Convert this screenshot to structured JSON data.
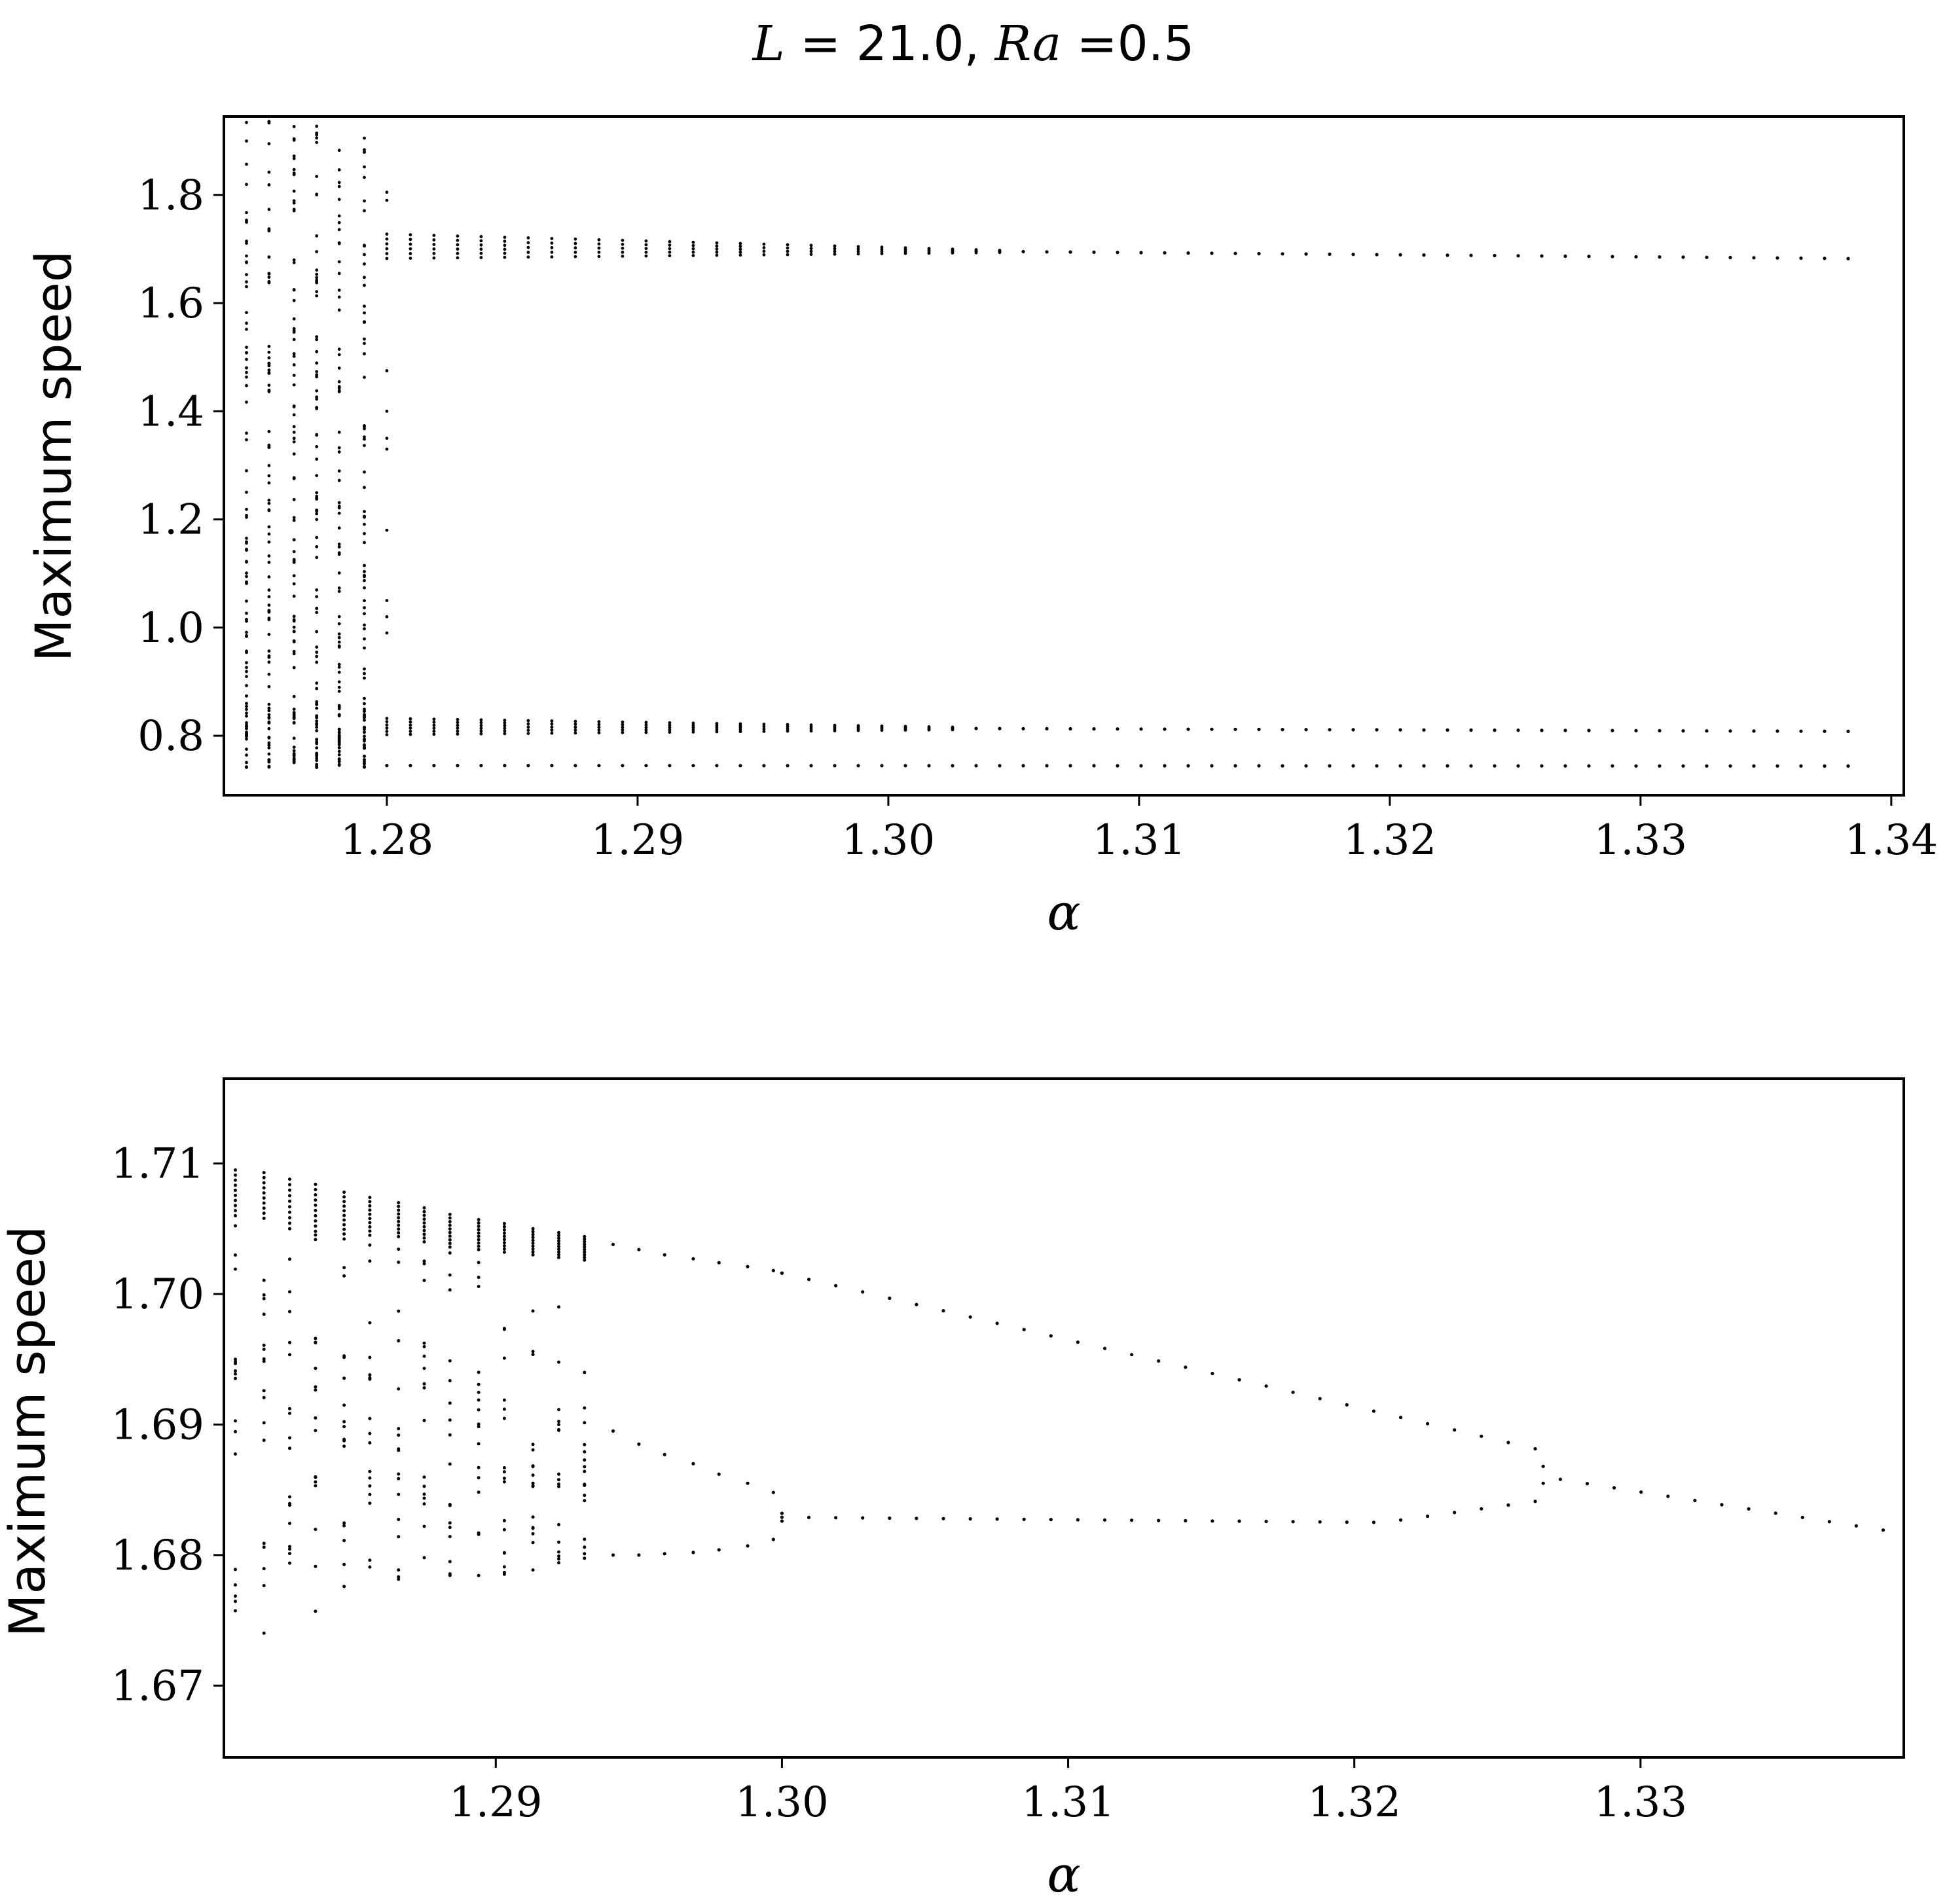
{
  "figure": {
    "title_math_L": "L",
    "title_eq1": " = 21.0, ",
    "title_math_Ra": "Ra",
    "title_eq2": " =0.5"
  },
  "chart_data": [
    {
      "type": "scatter",
      "xlabel": "α",
      "ylabel": "Maximum speed",
      "xlim": [
        1.2735,
        1.3405
      ],
      "ylim": [
        0.69,
        1.945
      ],
      "xticks": [
        1.28,
        1.29,
        1.3,
        1.31,
        1.32,
        1.33,
        1.34
      ],
      "xtick_labels": [
        "1.28",
        "1.29",
        "1.30",
        "1.31",
        "1.32",
        "1.33",
        "1.34"
      ],
      "yticks": [
        0.8,
        1.0,
        1.2,
        1.4,
        1.6,
        1.8
      ],
      "ytick_labels": [
        "0.8",
        "1.0",
        "1.2",
        "1.4",
        "1.6",
        "1.8"
      ],
      "grid": false,
      "marker_color": "#000000",
      "chaotic_region": {
        "alpha": [
          1.2744,
          1.2753,
          1.2763,
          1.2772,
          1.2781,
          1.2791
        ],
        "y_min": 0.74,
        "y_max": 1.94
      },
      "periodic_branches": [
        {
          "alpha_start": 1.28,
          "alpha_end": 1.3391,
          "step": 0.00094,
          "y_start": 1.705,
          "y_end": 1.682,
          "spread_start": 0.045,
          "spread_end": 0.0
        },
        {
          "alpha_start": 1.28,
          "alpha_end": 1.3391,
          "step": 0.00094,
          "y_start": 0.817,
          "y_end": 0.808,
          "spread_start": 0.03,
          "spread_end": 0.0
        },
        {
          "alpha_start": 1.28,
          "alpha_end": 1.3391,
          "step": 0.00094,
          "y_start": 0.745,
          "y_end": 0.744,
          "spread_start": 0.0,
          "spread_end": 0.0
        }
      ]
    },
    {
      "type": "scatter",
      "xlabel": "α",
      "ylabel": "Maximum speed",
      "xlim": [
        1.2805,
        1.3392
      ],
      "ylim": [
        1.6645,
        1.7165
      ],
      "xticks": [
        1.29,
        1.3,
        1.31,
        1.32,
        1.33
      ],
      "xtick_labels": [
        "1.29",
        "1.30",
        "1.31",
        "1.32",
        "1.33"
      ],
      "yticks": [
        1.67,
        1.68,
        1.69,
        1.7,
        1.71
      ],
      "ytick_labels": [
        "1.67",
        "1.68",
        "1.69",
        "1.70",
        "1.71"
      ],
      "grid": false,
      "marker_color": "#000000",
      "chaotic_band": {
        "alpha": [
          1.2809,
          1.2819,
          1.2828,
          1.2837,
          1.2847,
          1.2856,
          1.2866,
          1.2875,
          1.2884,
          1.2894,
          1.2903,
          1.2913,
          1.2922,
          1.2931
        ],
        "upper_max": [
          1.7095,
          1.7093,
          1.7088,
          1.7084,
          1.7078,
          1.7074,
          1.707,
          1.7066,
          1.7061,
          1.7057,
          1.7054,
          1.705,
          1.7047,
          1.7044
        ],
        "upper_min": [
          1.706,
          1.7058,
          1.705,
          1.7048,
          1.7046,
          1.7045,
          1.7044,
          1.704,
          1.7036,
          1.7034,
          1.7032,
          1.703,
          1.7028,
          1.7026
        ],
        "lower_max": [
          1.699,
          1.6985,
          1.6978,
          1.6965,
          1.696,
          1.6955,
          1.698,
          1.6975,
          1.6955,
          1.6945,
          1.6935,
          1.6925,
          1.691,
          1.6895
        ],
        "lower_min": [
          1.673,
          1.6735,
          1.674,
          1.6755,
          1.675,
          1.6765,
          1.677,
          1.6775,
          1.677,
          1.678,
          1.6785,
          1.6785,
          1.679,
          1.6795
        ]
      },
      "period_doubling_points": [
        {
          "alpha": 1.2941,
          "y": [
            1.7038,
            1.6895,
            1.68
          ]
        },
        {
          "alpha": 1.295,
          "y": [
            1.7034,
            1.6885,
            1.68
          ]
        },
        {
          "alpha": 1.2959,
          "y": [
            1.703,
            1.6877,
            1.6801
          ]
        },
        {
          "alpha": 1.2969,
          "y": [
            1.7027,
            1.687,
            1.6802
          ]
        },
        {
          "alpha": 1.2978,
          "y": [
            1.7024,
            1.6862,
            1.6804
          ]
        },
        {
          "alpha": 1.2988,
          "y": [
            1.7021,
            1.6855,
            1.6807
          ]
        },
        {
          "alpha": 1.2997,
          "y": [
            1.7018,
            1.6848,
            1.6812
          ]
        },
        {
          "alpha": 1.3,
          "y": [
            1.7016,
            1.6832,
            1.6826
          ]
        }
      ],
      "upper_branch": {
        "alpha": [
          1.3,
          1.3266
        ],
        "y": [
          1.7016,
          1.688
        ]
      },
      "lower_branch": {
        "alpha": [
          1.3,
          1.321,
          1.3266
        ],
        "y": [
          1.6829,
          1.6825,
          1.6842
        ]
      },
      "merged_branch": {
        "alpha": [
          1.3266,
          1.3272,
          1.3391
        ],
        "y": [
          1.6861,
          1.6858,
          1.6817
        ]
      }
    }
  ]
}
